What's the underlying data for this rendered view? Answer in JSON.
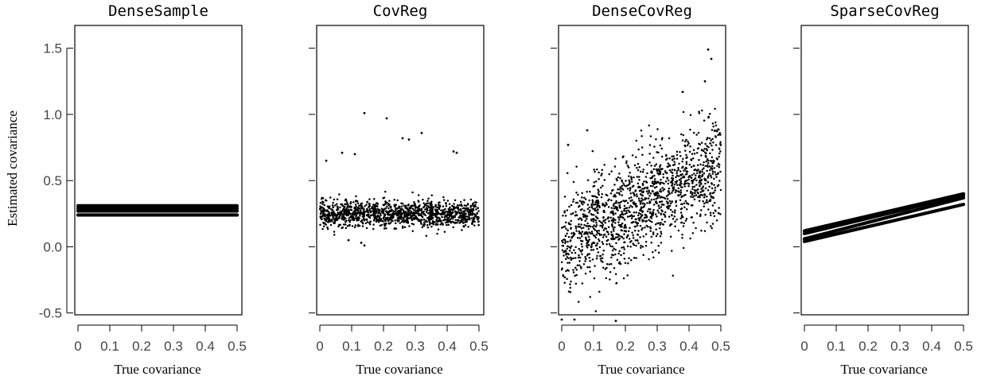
{
  "figure": {
    "ylabel": "Estimated covariance",
    "xlabel": "True covariance",
    "xlim": [
      0,
      0.5
    ],
    "ylim": [
      -0.55,
      1.6
    ],
    "x_ticks": [
      "0",
      "0.1",
      "0.2",
      "0.3",
      "0.4",
      "0.5"
    ],
    "x_tick_values": [
      0,
      0.1,
      0.2,
      0.3,
      0.4,
      0.5
    ],
    "y_ticks": [
      "-0.5",
      "0.0",
      "0.5",
      "1.0",
      "1.5"
    ],
    "y_tick_values": [
      -0.5,
      0.0,
      0.5,
      1.0,
      1.5
    ],
    "point_color": "#000000"
  },
  "chart_data": [
    {
      "type": "scatter",
      "title": "DenseSample",
      "description_of_pattern": "",
      "series": [
        {
          "x": [
            0,
            0.5
          ],
          "y": [
            0.31,
            0.31
          ]
        },
        {
          "x": [
            0,
            0.5
          ],
          "y": [
            0.29,
            0.29
          ]
        },
        {
          "x": [
            0,
            0.5
          ],
          "y": [
            0.27,
            0.27
          ]
        },
        {
          "x": [
            0,
            0.5
          ],
          "y": [
            0.24,
            0.24
          ]
        }
      ],
      "render": "lines"
    },
    {
      "type": "scatter",
      "title": "CovReg",
      "render": "points",
      "cloud": {
        "n": 1300,
        "x_range": [
          0,
          0.5
        ],
        "center_at_0": 0.25,
        "center_at_05": 0.25,
        "spread": 0.05
      },
      "outliers": [
        {
          "x": 0.14,
          "y": 1.01
        },
        {
          "x": 0.21,
          "y": 0.97
        },
        {
          "x": 0.26,
          "y": 0.82
        },
        {
          "x": 0.28,
          "y": 0.81
        },
        {
          "x": 0.32,
          "y": 0.86
        },
        {
          "x": 0.42,
          "y": 0.72
        },
        {
          "x": 0.43,
          "y": 0.71
        },
        {
          "x": 0.07,
          "y": 0.71
        },
        {
          "x": 0.11,
          "y": 0.7
        },
        {
          "x": 0.02,
          "y": 0.65
        },
        {
          "x": 0.13,
          "y": 0.03
        },
        {
          "x": 0.14,
          "y": 0.01
        },
        {
          "x": 0.09,
          "y": 0.05
        }
      ]
    },
    {
      "type": "scatter",
      "title": "DenseCovReg",
      "render": "points",
      "cloud": {
        "n": 1500,
        "x_range": [
          0,
          0.5
        ],
        "center_at_0": 0.02,
        "center_at_05": 0.6,
        "spread": 0.2
      },
      "outliers": [
        {
          "x": 0.46,
          "y": 1.49
        },
        {
          "x": 0.47,
          "y": 1.42
        },
        {
          "x": 0.45,
          "y": 1.25
        },
        {
          "x": 0.38,
          "y": 1.17
        },
        {
          "x": 0.08,
          "y": 0.88
        },
        {
          "x": 0.02,
          "y": 0.77
        },
        {
          "x": 0.04,
          "y": -0.55
        },
        {
          "x": 0.17,
          "y": -0.56
        },
        {
          "x": 0.0,
          "y": -0.55
        }
      ]
    },
    {
      "type": "scatter",
      "title": "SparseCovReg",
      "render": "lines",
      "series": [
        {
          "x": [
            0,
            0.5
          ],
          "y": [
            0.12,
            0.4
          ]
        },
        {
          "x": [
            0,
            0.5
          ],
          "y": [
            0.1,
            0.39
          ]
        },
        {
          "x": [
            0,
            0.5
          ],
          "y": [
            0.06,
            0.37
          ]
        },
        {
          "x": [
            0,
            0.5
          ],
          "y": [
            0.04,
            0.32
          ]
        }
      ]
    }
  ]
}
